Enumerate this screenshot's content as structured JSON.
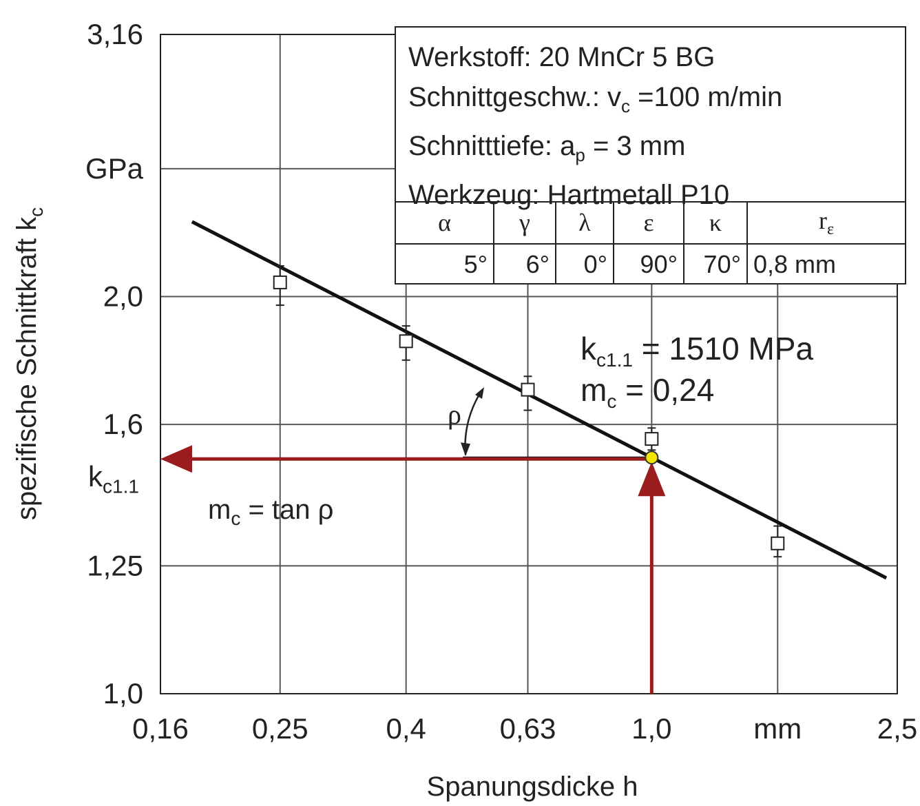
{
  "chart_data": {
    "type": "scatter",
    "scale": "log-log",
    "xlabel": "Spanungsdicke h",
    "ylabel": "spezifische Schnittkraft k",
    "ylabel_sub": "c",
    "x_unit": "mm",
    "y_unit": "GPa",
    "xlim": [
      0.16,
      2.5
    ],
    "ylim": [
      1.0,
      3.16
    ],
    "x_ticks": [
      {
        "value": 0.16,
        "label": "0,16"
      },
      {
        "value": 0.25,
        "label": "0,25"
      },
      {
        "value": 0.4,
        "label": "0,4"
      },
      {
        "value": 0.63,
        "label": "0,63"
      },
      {
        "value": 1.0,
        "label": "1,0"
      },
      {
        "value": 1.6,
        "label": "mm"
      },
      {
        "value": 2.5,
        "label": "2,5"
      }
    ],
    "y_ticks": [
      {
        "value": 1.0,
        "label": "1,0"
      },
      {
        "value": 1.25,
        "label": "1,25"
      },
      {
        "value": 1.6,
        "label": "1,6"
      },
      {
        "value": 2.0,
        "label": "2,0"
      },
      {
        "value": 2.5,
        "label": "GPa"
      },
      {
        "value": 3.16,
        "label": "3,16"
      }
    ],
    "series": [
      {
        "points": [
          {
            "x": 0.25,
            "y": 2.05,
            "err_low": 1.97,
            "err_high": 2.11
          },
          {
            "x": 0.4,
            "y": 1.85,
            "err_low": 1.79,
            "err_high": 1.9
          },
          {
            "x": 0.63,
            "y": 1.7,
            "err_low": 1.64,
            "err_high": 1.74
          },
          {
            "x": 1.0,
            "y": 1.56,
            "err_low": 1.53,
            "err_high": 1.59
          },
          {
            "x": 1.6,
            "y": 1.3,
            "err_low": 1.27,
            "err_high": 1.34
          }
        ]
      }
    ],
    "fit_line": {
      "x_start": 0.18,
      "x_end": 2.4,
      "kc11_GPa": 1.51,
      "mc": 0.24
    },
    "reference_point": {
      "x": 1.0,
      "y": 1.51,
      "color": "#f2e600"
    },
    "arrow_color": "#9b1c1c",
    "kc_axis_label": "k",
    "kc_axis_label_sub": "c1.1",
    "rho_label": "ρ",
    "mc_formula": {
      "m": "m",
      "sub": "c",
      "rest": " = tan ρ"
    }
  },
  "info": {
    "werkstoff": "Werkstoff: 20 MnCr 5 BG",
    "vc": {
      "pre": "Schnittgeschw.: v",
      "sub": "c",
      "post": " =100 m/min"
    },
    "ap": {
      "pre": "Schnitttiefe: a",
      "sub": "p",
      "post": " = 3 mm"
    },
    "werkzeug": "Werkzeug: Hartmetall P10",
    "geometry_headers": [
      "α",
      "γ",
      "λ",
      "ε",
      "κ",
      "r"
    ],
    "r_sub": "ε",
    "geometry_values": [
      "5°",
      "6°",
      "0°",
      "90°",
      "70°",
      "0,8 mm"
    ]
  },
  "result": {
    "kc": {
      "pre": "k",
      "sub": "c1.1",
      "post": " = 1510 MPa"
    },
    "mc": {
      "pre": "m",
      "sub": "c",
      "post": " = 0,24"
    }
  }
}
